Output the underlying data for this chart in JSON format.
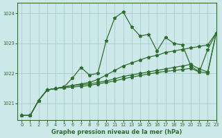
{
  "title": "Graphe pression niveau de la mer (hPa)",
  "bg_color": "#cde8e8",
  "grid_color": "#aacccc",
  "line_color": "#2d6e2d",
  "xlim": [
    -0.5,
    23
  ],
  "ylim": [
    1020.45,
    1024.35
  ],
  "yticks": [
    1021,
    1022,
    1023,
    1024
  ],
  "xticks": [
    0,
    1,
    2,
    3,
    4,
    5,
    6,
    7,
    8,
    9,
    10,
    11,
    12,
    13,
    14,
    15,
    16,
    17,
    18,
    19,
    20,
    21,
    22,
    23
  ],
  "series": [
    [
      1020.6,
      1020.6,
      1021.1,
      1021.45,
      1021.5,
      1021.55,
      1021.85,
      1022.2,
      1021.95,
      1022.0,
      1023.1,
      1023.85,
      1024.05,
      1023.55,
      1023.25,
      1023.3,
      1022.75,
      1023.2,
      1023.0,
      1022.95,
      1022.25,
      1022.05,
      1022.8,
      1023.35
    ],
    [
      1020.6,
      1020.6,
      1021.1,
      1021.45,
      1021.5,
      1021.55,
      1021.6,
      1021.65,
      1021.7,
      1021.8,
      1021.95,
      1022.1,
      1022.25,
      1022.35,
      1022.45,
      1022.55,
      1022.6,
      1022.7,
      1022.75,
      1022.8,
      1022.85,
      1022.9,
      1022.95,
      1023.35
    ],
    [
      1020.6,
      1020.6,
      1021.1,
      1021.45,
      1021.5,
      1021.55,
      1021.6,
      1021.62,
      1021.65,
      1021.7,
      1021.75,
      1021.82,
      1021.9,
      1021.95,
      1022.0,
      1022.05,
      1022.1,
      1022.15,
      1022.2,
      1022.25,
      1022.3,
      1022.15,
      1022.05,
      1023.35
    ],
    [
      1020.6,
      1020.6,
      1021.1,
      1021.45,
      1021.5,
      1021.52,
      1021.55,
      1021.57,
      1021.6,
      1021.65,
      1021.7,
      1021.75,
      1021.82,
      1021.88,
      1021.93,
      1021.98,
      1022.03,
      1022.07,
      1022.1,
      1022.13,
      1022.17,
      1022.05,
      1022.02,
      1023.35
    ]
  ],
  "marker": "*",
  "markersize": 3.5,
  "linewidth": 0.9,
  "figwidth": 3.2,
  "figheight": 2.0,
  "dpi": 100,
  "xlabel_fontsize": 6,
  "tick_fontsize": 4.8
}
